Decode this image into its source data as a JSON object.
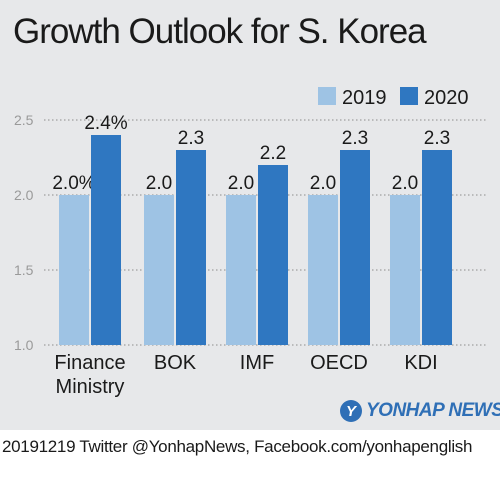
{
  "title": "Growth Outlook for S. Korea",
  "footer": "20191219 Twitter @YonhapNews,  Facebook.com/yonhapenglish",
  "logo": {
    "mark": "Y",
    "text": "YONHAP NEWS"
  },
  "colors": {
    "background": "#e7e8ea",
    "series_2019": "#9ec3e4",
    "series_2020": "#2f77c1",
    "brand": "#2f6fb6"
  },
  "chart_data": {
    "type": "bar",
    "categories": [
      [
        "Finance",
        "Ministry"
      ],
      [
        "BOK"
      ],
      [
        "IMF"
      ],
      [
        "OECD"
      ],
      [
        "KDI"
      ]
    ],
    "series": [
      {
        "name": "2019",
        "values": [
          2.0,
          2.0,
          2.0,
          2.0,
          2.0
        ],
        "labels": [
          "2.0%",
          "2.0",
          "2.0",
          "2.0",
          "2.0"
        ],
        "color": "#9ec3e4"
      },
      {
        "name": "2020",
        "values": [
          2.4,
          2.3,
          2.2,
          2.3,
          2.3
        ],
        "labels": [
          "2.4%",
          "2.3",
          "2.2",
          "2.3",
          "2.3"
        ],
        "color": "#2f77c1"
      }
    ],
    "ylim": [
      1.0,
      2.5
    ],
    "yticks": [
      "1.0",
      "1.5",
      "2.0",
      "2.5"
    ],
    "grid": "dotted horizontal",
    "legend": "top-right"
  }
}
